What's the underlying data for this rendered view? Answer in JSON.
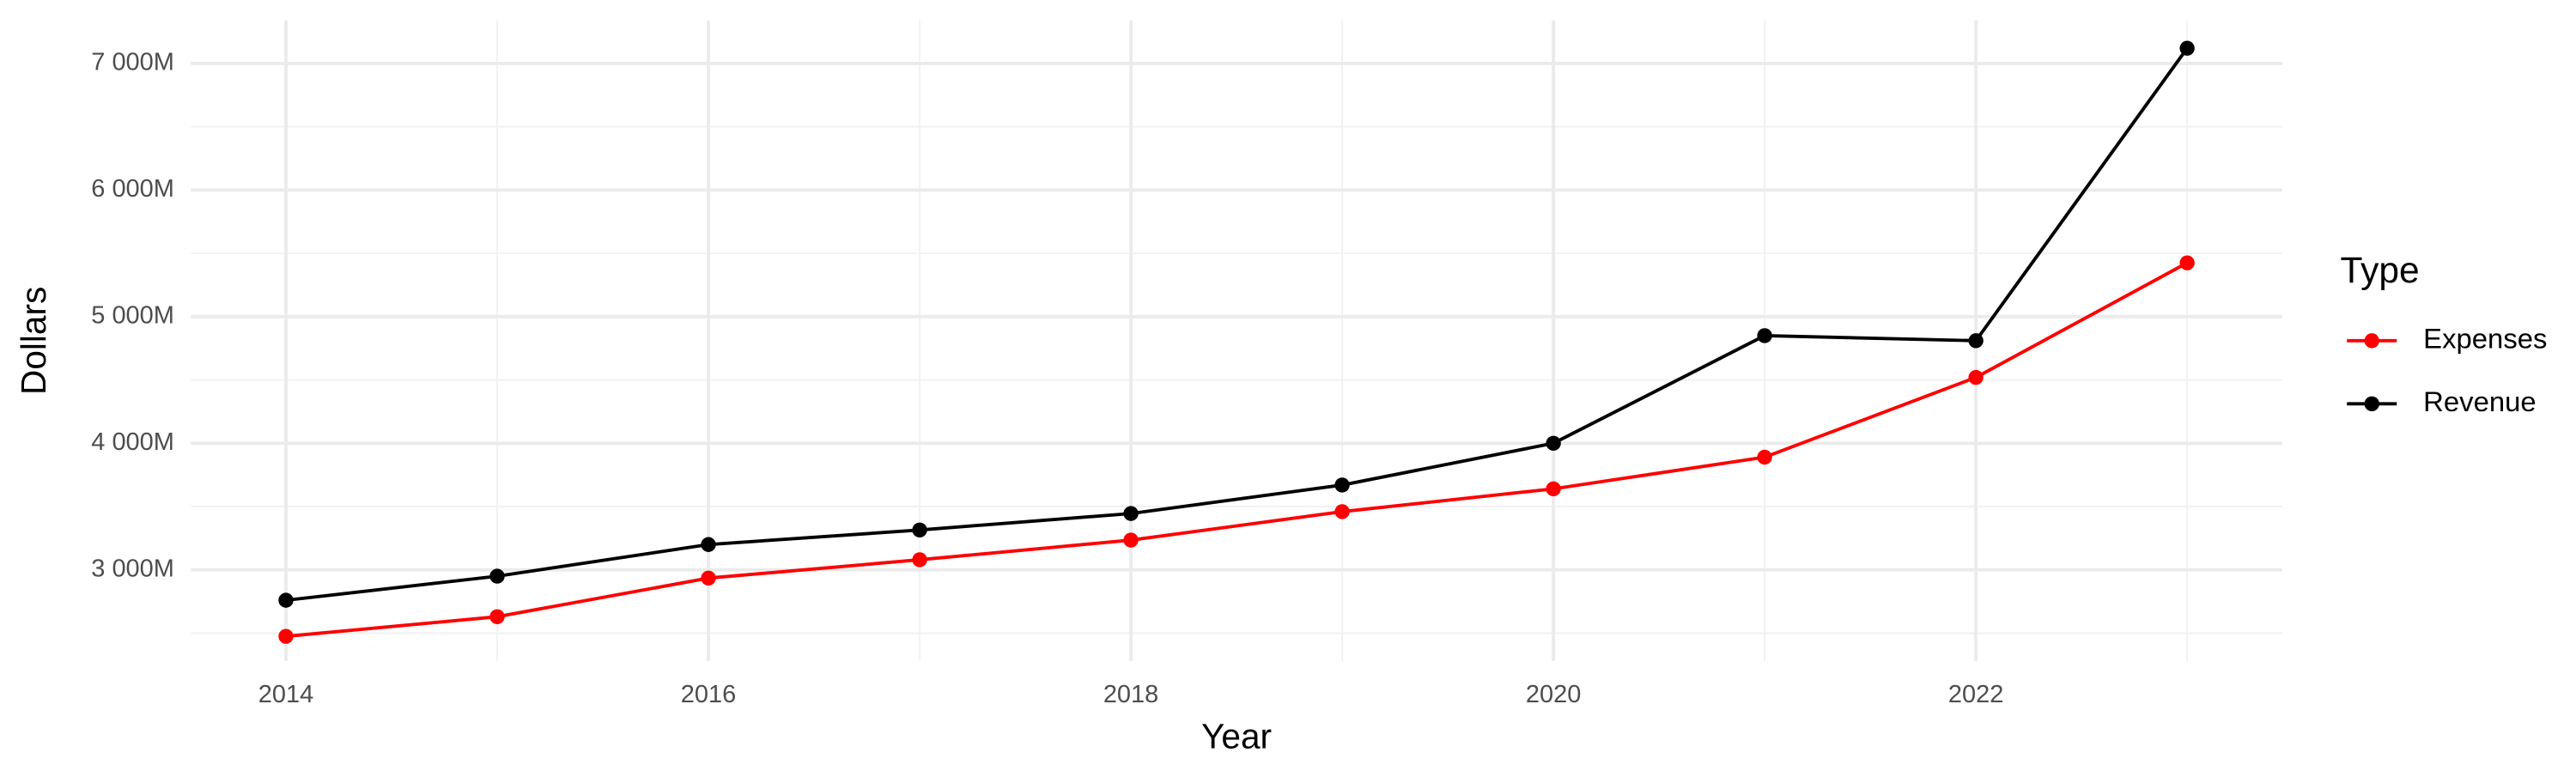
{
  "chart_data": {
    "type": "line",
    "x_label": "Year",
    "y_label": "Dollars",
    "x": [
      2014,
      2015,
      2016,
      2017,
      2018,
      2019,
      2020,
      2021,
      2022,
      2023
    ],
    "series": [
      {
        "name": "Expenses",
        "color": "#ff0000",
        "values": [
          2475,
          2630,
          2935,
          3080,
          3235,
          3460,
          3640,
          3890,
          4520,
          5425
        ]
      },
      {
        "name": "Revenue",
        "color": "#000000",
        "values": [
          2760,
          2950,
          3200,
          3315,
          3445,
          3670,
          4000,
          4850,
          4810,
          7120
        ]
      }
    ],
    "xlim": [
      2013.55,
      2023.45
    ],
    "xticks": [
      2014,
      2016,
      2018,
      2020,
      2022
    ],
    "ylim": [
      2280,
      7340
    ],
    "yticks": [
      {
        "value": 3000,
        "label": "3 000M"
      },
      {
        "value": 4000,
        "label": "4 000M"
      },
      {
        "value": 5000,
        "label": "5 000M"
      },
      {
        "value": 6000,
        "label": "6 000M"
      },
      {
        "value": 7000,
        "label": "7 000M"
      }
    ],
    "grid": true,
    "legend": {
      "title": "Type",
      "position": "right"
    }
  }
}
